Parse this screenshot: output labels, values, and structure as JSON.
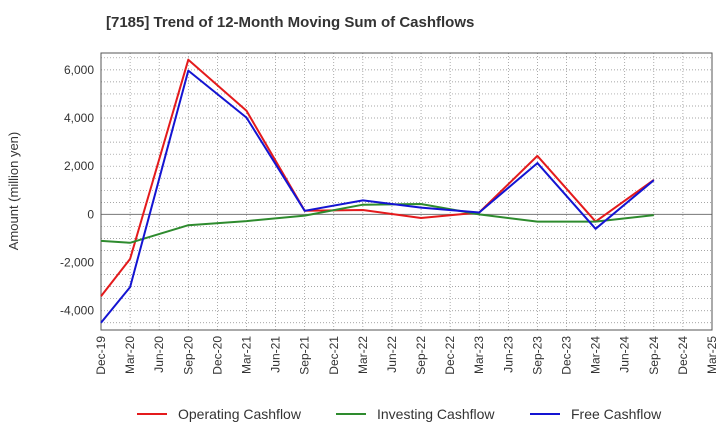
{
  "chart_data": {
    "type": "line",
    "title": "[7185]  Trend of 12-Month Moving Sum of Cashflows",
    "ylabel": "Amount (million yen)",
    "xlabel": "",
    "ylim": [
      -4800,
      6700
    ],
    "yticks": [
      -4000,
      -2000,
      0,
      2000,
      4000,
      6000
    ],
    "ytick_labels": [
      "-4,000",
      "-2,000",
      "0",
      "2,000",
      "4,000",
      "6,000"
    ],
    "categories": [
      "Dec-19",
      "Mar-20",
      "Jun-20",
      "Sep-20",
      "Dec-20",
      "Mar-21",
      "Jun-21",
      "Sep-21",
      "Dec-21",
      "Mar-22",
      "Jun-22",
      "Sep-22",
      "Dec-22",
      "Mar-23",
      "Jun-23",
      "Sep-23",
      "Dec-23",
      "Mar-24",
      "Jun-24",
      "Sep-24",
      "Dec-24",
      "Mar-25"
    ],
    "grid": true,
    "legend_position": "bottom",
    "series": [
      {
        "name": "Operating Cashflow",
        "color": "#e41a1c",
        "values": [
          -3400,
          -1850,
          null,
          6420,
          null,
          4300,
          null,
          150,
          null,
          180,
          null,
          -150,
          null,
          80,
          null,
          2430,
          null,
          -300,
          null,
          1430,
          null,
          null
        ]
      },
      {
        "name": "Investing Cashflow",
        "color": "#2e8b2e",
        "values": [
          -1100,
          -1180,
          null,
          -450,
          null,
          -280,
          null,
          -50,
          null,
          400,
          null,
          430,
          null,
          0,
          null,
          -300,
          null,
          -300,
          null,
          -30,
          null,
          null
        ]
      },
      {
        "name": "Free Cashflow",
        "color": "#1414d2",
        "values": [
          -4500,
          -3020,
          null,
          5970,
          null,
          4020,
          null,
          150,
          null,
          580,
          null,
          280,
          null,
          80,
          null,
          2130,
          null,
          -600,
          null,
          1420,
          null,
          null
        ]
      }
    ]
  }
}
